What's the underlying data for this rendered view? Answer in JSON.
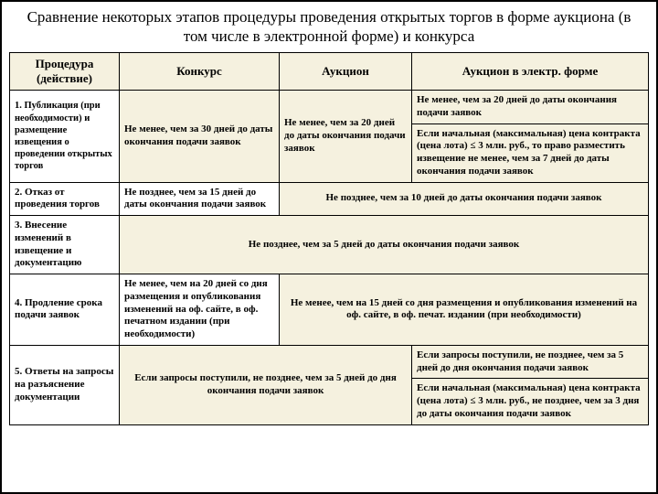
{
  "colors": {
    "cream": "#f5f1df",
    "white": "#ffffff",
    "border": "#000000"
  },
  "title": "Сравнение некоторых этапов процедуры проведения открытых торгов в форме аукциона (в том числе в электронной форме) и конкурса",
  "head": {
    "c1": "Процедура (действие)",
    "c2": "Конкурс",
    "c3": "Аукцион",
    "c4": "Аукцион в электр. форме"
  },
  "r1": {
    "label": "1. Публикация (при необходимости) и размещение извещения о проведении открытых торгов",
    "konk": "Не менее, чем за 30 дней до даты окончания подачи заявок",
    "auk": "Не менее, чем за 20 дней до даты окончания подачи заявок",
    "el_a": "Не менее, чем за 20 дней до даты окончания подачи заявок",
    "el_b": "Если начальная (максимальная) цена контракта (цена лота) ≤ 3 млн. руб., то право разместить извещение не менее, чем за 7 дней до даты окончания подачи заявок"
  },
  "r2": {
    "label": "2. Отказ от проведения торгов",
    "konk": "Не позднее, чем за 15 дней до даты окончания подачи заявок",
    "merged": "Не позднее, чем за 10 дней до даты окончания подачи заявок"
  },
  "r3": {
    "label": "3. Внесение изменений в извещение и документацию",
    "merged": "Не позднее, чем за 5 дней до даты окончания подачи заявок"
  },
  "r4": {
    "label": "4. Продление срока подачи заявок",
    "konk": "Не менее, чем на 20 дней со дня размещения и опубликования изменений на оф. сайте, в оф. печатном издании (при необходимости)",
    "merged": "Не менее, чем на 15 дней со дня размещения и опубликования изменений на оф. сайте, в оф. печат. издании (при необходимости)"
  },
  "r5": {
    "label": "5. Ответы на запросы на разъяснение документации",
    "merged_left": "Если запросы поступили, не позднее, чем за 5 дней до дня окончания подачи заявок",
    "el_a": "Если запросы поступили, не позднее, чем за 5 дней до дня окончания подачи заявок",
    "el_b": "Если начальная (максимальная) цена контракта (цена лота) ≤ 3 млн. руб., не позднее, чем за 3 дня до даты окончания подачи заявок"
  }
}
